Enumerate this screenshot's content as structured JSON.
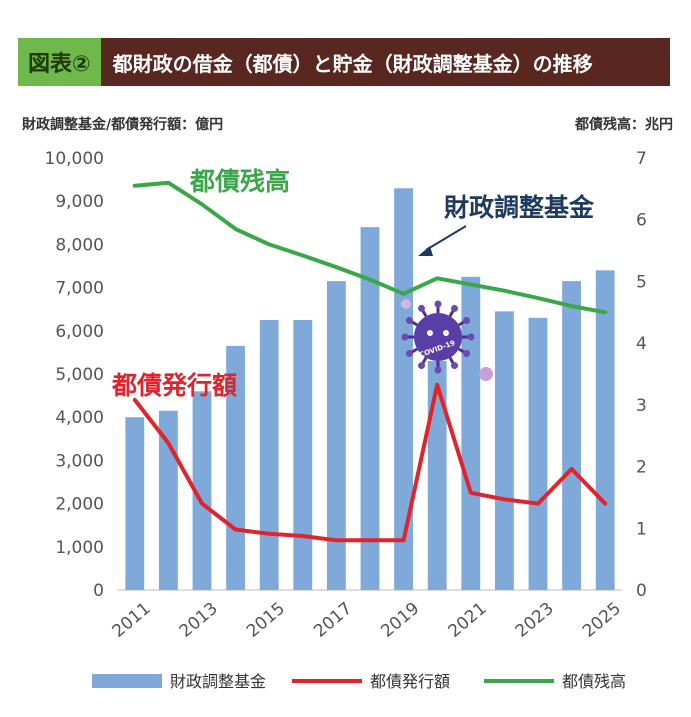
{
  "header": {
    "tag": "図表②",
    "title": "都財政の借金（都債）と貯金（財政調整基金）の推移"
  },
  "left_unit": "財政調整基金/都債発行額：億円",
  "right_unit": "都債残高：兆円",
  "colors": {
    "bars": "#7fa9d8",
    "issuance": "#e0242b",
    "balance": "#3aa848",
    "fund_label": "#1f3a5f"
  },
  "covid_icon": "virus-icon",
  "covid_label": "COVID-19",
  "chart_data": {
    "type": "bar",
    "x": [
      2011,
      2012,
      2013,
      2014,
      2015,
      2016,
      2017,
      2018,
      2019,
      2020,
      2021,
      2022,
      2023,
      2024,
      2025
    ],
    "x_tick_labels": [
      "2011",
      "2013",
      "2015",
      "2017",
      "2019",
      "2021",
      "2023",
      "2025"
    ],
    "ylim_left": [
      0,
      10000
    ],
    "ylim_right": [
      0,
      7
    ],
    "y_left_ticks": [
      "0",
      "1,000",
      "2,000",
      "3,000",
      "4,000",
      "5,000",
      "6,000",
      "7,000",
      "8,000",
      "9,000",
      "10,000"
    ],
    "y_right_ticks": [
      "0",
      "1",
      "2",
      "3",
      "4",
      "5",
      "6",
      "7"
    ],
    "series": [
      {
        "name": "財政調整基金",
        "type": "bar",
        "axis": "left",
        "values": [
          4000,
          4150,
          4600,
          5650,
          6250,
          6250,
          7150,
          8400,
          9300,
          5300,
          7250,
          6450,
          6300,
          7150,
          7400
        ]
      },
      {
        "name": "都債発行額",
        "type": "line",
        "axis": "left",
        "values": [
          4400,
          3400,
          2000,
          1400,
          1300,
          1250,
          1150,
          1150,
          1150,
          4750,
          2250,
          2100,
          2000,
          2800,
          2000
        ]
      },
      {
        "name": "都債残高",
        "type": "line",
        "axis": "right",
        "values": [
          6.55,
          6.6,
          6.25,
          5.85,
          5.6,
          5.42,
          5.23,
          5.03,
          4.8,
          5.05,
          4.95,
          4.85,
          4.73,
          4.6,
          4.5
        ]
      }
    ],
    "annotations": [
      "都債残高",
      "財政調整基金",
      "都債発行額"
    ]
  }
}
